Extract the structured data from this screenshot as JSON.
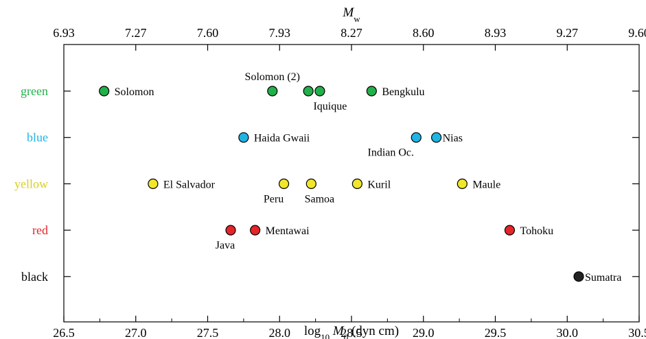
{
  "chart_data": {
    "type": "scatter",
    "xlabel": "log10 M0 (dyn cm)",
    "top_axis_label": "Mw",
    "xlim": [
      26.5,
      30.5
    ],
    "x_ticks": [
      "26.5",
      "27.0",
      "27.5",
      "28.0",
      "28.5",
      "29.0",
      "29.5",
      "30.0",
      "30.5"
    ],
    "top_ticks": [
      "6.93",
      "7.27",
      "7.60",
      "7.93",
      "8.27",
      "8.60",
      "8.93",
      "9.27",
      "9.60"
    ],
    "categories": [
      "green",
      "blue",
      "yellow",
      "red",
      "black"
    ],
    "category_colors": {
      "green": "#22b04b",
      "blue": "#1fb4e4",
      "yellow": "#f2e62a",
      "red": "#e4252a",
      "black": "#222222"
    },
    "category_label_colors": {
      "green": "#22b04b",
      "blue": "#1fb4e4",
      "yellow": "#d8d020",
      "red": "#e4252a",
      "black": "#000000"
    },
    "grid": false,
    "points": [
      {
        "label": "Solomon",
        "x": 26.78,
        "category": "green"
      },
      {
        "label": "Solomon (2)",
        "x": 27.95,
        "category": "green"
      },
      {
        "label": "",
        "x": 28.2,
        "category": "green"
      },
      {
        "label": "Iquique",
        "x": 28.28,
        "category": "green"
      },
      {
        "label": "Bengkulu",
        "x": 28.64,
        "category": "green"
      },
      {
        "label": "Haida Gwaii",
        "x": 27.75,
        "category": "blue"
      },
      {
        "label": "Indian Oc.",
        "x": 28.95,
        "category": "blue"
      },
      {
        "label": "Nias",
        "x": 29.09,
        "category": "blue"
      },
      {
        "label": "El Salvador",
        "x": 27.12,
        "category": "yellow"
      },
      {
        "label": "Peru",
        "x": 28.03,
        "category": "yellow"
      },
      {
        "label": "Samoa",
        "x": 28.22,
        "category": "yellow"
      },
      {
        "label": "Kuril",
        "x": 28.54,
        "category": "yellow"
      },
      {
        "label": "Maule",
        "x": 29.27,
        "category": "yellow"
      },
      {
        "label": "Java",
        "x": 27.66,
        "category": "red"
      },
      {
        "label": "Mentawai",
        "x": 27.83,
        "category": "red"
      },
      {
        "label": "Tohoku",
        "x": 29.6,
        "category": "red"
      },
      {
        "label": "Sumatra",
        "x": 30.08,
        "category": "black"
      }
    ]
  }
}
